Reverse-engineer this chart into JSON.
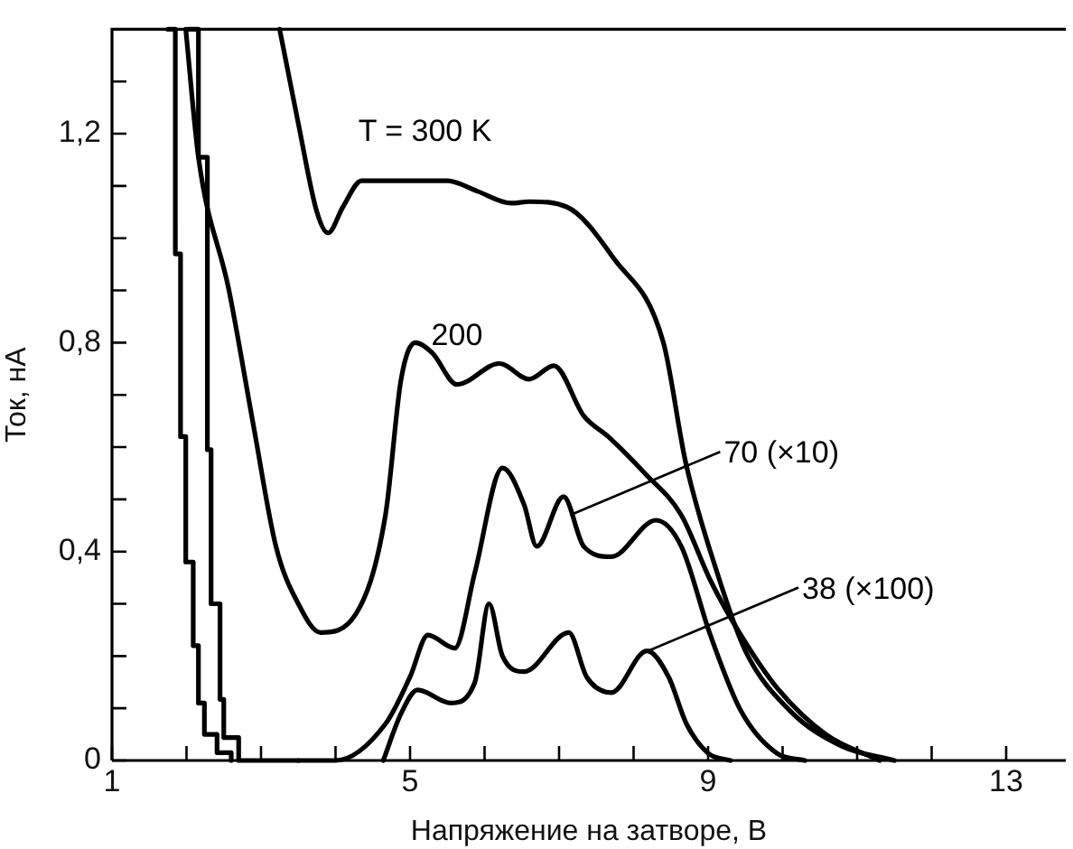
{
  "chart_data": {
    "type": "line",
    "xlabel": "Напряжение на затворе, В",
    "ylabel": "Ток, нА",
    "xlim": [
      1,
      13.8
    ],
    "ylim": [
      0,
      1.4
    ],
    "xticks": [
      1,
      {
        "value": 2,
        "label": null
      },
      {
        "value": 3,
        "label": null
      },
      {
        "value": 4,
        "label": null
      },
      5,
      {
        "value": 6,
        "label": null
      },
      {
        "value": 7,
        "label": null
      },
      {
        "value": 8,
        "label": null
      },
      9,
      {
        "value": 10,
        "label": null
      },
      {
        "value": 11,
        "label": null
      },
      {
        "value": 12,
        "label": null
      },
      13
    ],
    "yticks": [
      {
        "value": 0,
        "label": "0"
      },
      {
        "value": 0.1,
        "label": null
      },
      {
        "value": 0.2,
        "label": null
      },
      {
        "value": 0.3,
        "label": null
      },
      {
        "value": 0.4,
        "label": "0,4"
      },
      {
        "value": 0.5,
        "label": null
      },
      {
        "value": 0.6,
        "label": null
      },
      {
        "value": 0.7,
        "label": null
      },
      {
        "value": 0.8,
        "label": "0,8"
      },
      {
        "value": 0.9,
        "label": null
      },
      {
        "value": 1.0,
        "label": null
      },
      {
        "value": 1.1,
        "label": null
      },
      {
        "value": 1.2,
        "label": "1,2"
      },
      {
        "value": 1.3,
        "label": null
      }
    ],
    "grid": false,
    "legend": false,
    "marker": "none",
    "line_style": "solid",
    "series": [
      {
        "color": "#000000",
        "x": [
          3.25,
          3.5,
          3.75,
          3.9,
          4.1,
          4.35,
          5.0,
          5.5,
          5.9,
          6.36,
          6.6,
          7.1,
          7.74,
          8.4,
          8.7,
          9.12,
          9.5,
          10.1,
          10.8,
          11.5
        ],
        "values": [
          1.4,
          1.22,
          1.05,
          1.01,
          1.06,
          1.11,
          1.11,
          1.11,
          1.09,
          1.067,
          1.07,
          1.06,
          0.96,
          0.8,
          0.57,
          0.36,
          0.21,
          0.095,
          0.027,
          0
        ]
      },
      {
        "color": "#000000",
        "x": [
          1.99,
          2.16,
          2.57,
          2.9,
          3.2,
          3.5,
          3.8,
          4.27,
          4.67,
          4.88,
          5.07,
          5.3,
          5.63,
          6.2,
          6.6,
          6.93,
          7.33,
          7.66,
          8.15,
          8.64,
          9.03,
          9.44,
          9.92,
          10.58,
          11.3
        ],
        "values": [
          1.4,
          1.155,
          0.9,
          0.64,
          0.41,
          0.3,
          0.245,
          0.28,
          0.47,
          0.73,
          0.8,
          0.78,
          0.72,
          0.76,
          0.73,
          0.756,
          0.66,
          0.62,
          0.55,
          0.47,
          0.345,
          0.24,
          0.14,
          0.05,
          0
        ]
      },
      {
        "color": "#000000",
        "x": [
          3.5,
          4.0,
          4.67,
          5.0,
          5.24,
          5.6,
          5.87,
          6.24,
          6.53,
          6.7,
          7.06,
          7.33,
          7.7,
          8.3,
          8.64,
          9.03,
          9.44,
          9.92,
          10.3
        ],
        "values": [
          0,
          0,
          0.07,
          0.16,
          0.24,
          0.215,
          0.36,
          0.56,
          0.49,
          0.41,
          0.505,
          0.41,
          0.39,
          0.46,
          0.41,
          0.24,
          0.095,
          0.014,
          0
        ]
      },
      {
        "color": "#000000",
        "x": [
          4.64,
          4.88,
          5.1,
          5.55,
          5.87,
          6.06,
          6.24,
          6.53,
          7.13,
          7.37,
          7.7,
          8.18,
          8.47,
          8.71,
          9.0,
          9.3
        ],
        "values": [
          0,
          0.09,
          0.135,
          0.11,
          0.15,
          0.3,
          0.2,
          0.17,
          0.245,
          0.16,
          0.13,
          0.21,
          0.16,
          0.07,
          0.014,
          0
        ]
      },
      {
        "type": "step",
        "color": "#000000",
        "x": [
          1.75,
          1.85,
          1.92,
          1.99,
          2.09,
          2.16,
          2.24,
          2.41,
          2.6
        ],
        "values": [
          1.4,
          0.97,
          0.62,
          0.38,
          0.22,
          0.11,
          0.05,
          0.015,
          0
        ]
      },
      {
        "type": "step",
        "color": "#000000",
        "x": [
          2.02,
          2.16,
          2.28,
          2.33,
          2.45,
          2.5,
          2.7,
          3.5
        ],
        "values": [
          1.4,
          1.155,
          0.595,
          0.3,
          0.117,
          0.044,
          0,
          0
        ]
      }
    ],
    "annotations": [
      {
        "text": "T = 300 K",
        "x": 5.2,
        "y": 1.11
      },
      {
        "text": "200",
        "x": 5.63,
        "y": 0.72
      },
      {
        "text": "70 (×10)",
        "x": 7.15,
        "y": 0.47
      },
      {
        "text": "38 (×100)",
        "x": 8.2,
        "y": 0.21
      }
    ]
  }
}
